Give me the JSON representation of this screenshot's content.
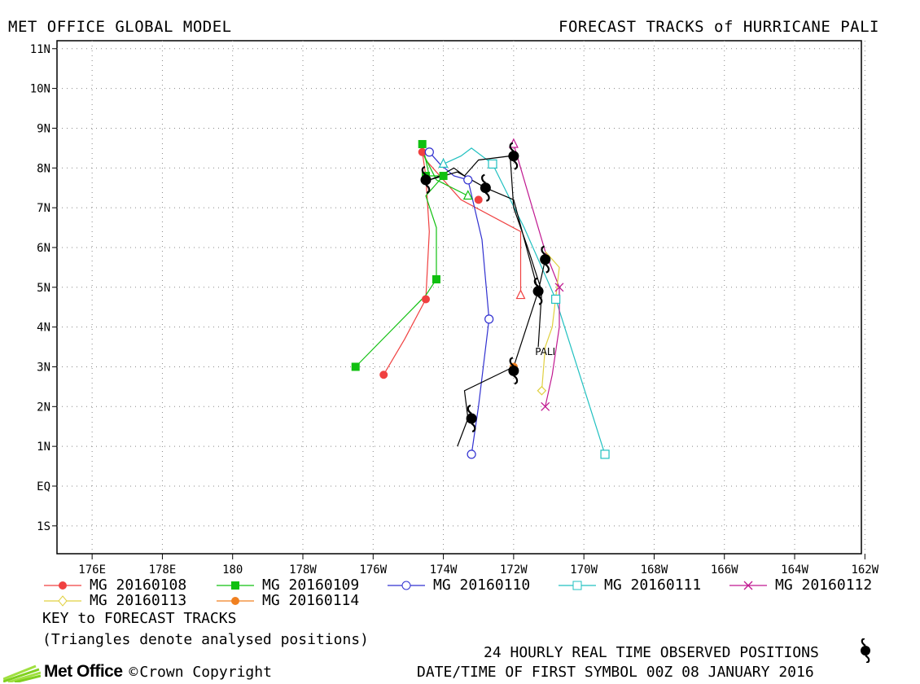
{
  "header": {
    "left": "MET OFFICE GLOBAL MODEL",
    "right": "FORECAST TRACKS of HURRICANE PALI"
  },
  "legend": {
    "entries": [
      {
        "label": "MG 20160108",
        "color": "#f04040",
        "marker": "filled-circle"
      },
      {
        "label": "MG 20160109",
        "color": "#10c010",
        "marker": "filled-square"
      },
      {
        "label": "MG 20160110",
        "color": "#3030d0",
        "marker": "open-circle"
      },
      {
        "label": "MG 20160111",
        "color": "#20c0c0",
        "marker": "open-square"
      },
      {
        "label": "MG 20160112",
        "color": "#c01890",
        "marker": "x"
      },
      {
        "label": "MG 20160113",
        "color": "#e0d040",
        "marker": "open-diamond"
      },
      {
        "label": "MG 20160114",
        "color": "#f08020",
        "marker": "filled-circle"
      }
    ]
  },
  "notes": {
    "key": "KEY to FORECAST TRACKS",
    "triangles": "(Triangles denote analysed positions)",
    "observed": "24 HOURLY REAL TIME OBSERVED POSITIONS",
    "datetime": "DATE/TIME OF FIRST SYMBOL 00Z 08 JANUARY 2016"
  },
  "logo": {
    "name": "Met Office",
    "copyright": "Crown Copyright",
    "copyright_symbol": "©"
  },
  "chart_data": {
    "type": "line",
    "title": "FORECAST TRACKS of HURRICANE PALI",
    "x_ticks": [
      "176E",
      "178E",
      "180",
      "178W",
      "176W",
      "174W",
      "172W",
      "170W",
      "168W",
      "166W",
      "164W",
      "162W"
    ],
    "y_ticks": [
      "11N",
      "10N",
      "9N",
      "8N",
      "7N",
      "6N",
      "5N",
      "4N",
      "3N",
      "2N",
      "1N",
      "EQ",
      "1S"
    ],
    "xlim": [
      175.0,
      197.9
    ],
    "ylim": [
      -1.7,
      11.2
    ],
    "grid": true,
    "storm_label": {
      "text": "PALI",
      "lon": 188.9,
      "lat": 3.4
    },
    "series": [
      {
        "name": "MG 20160108",
        "color": "#f04040",
        "marker": "filled-circle",
        "track": [
          [
            188.2,
            4.8
          ],
          [
            188.2,
            6.4
          ],
          [
            186.5,
            7.2
          ],
          [
            185.5,
            8.2
          ],
          [
            185.4,
            8.4
          ],
          [
            185.5,
            7.8
          ],
          [
            185.6,
            6.4
          ],
          [
            185.5,
            4.7
          ],
          [
            184.9,
            3.7
          ],
          [
            184.3,
            2.8
          ]
        ],
        "markers": [
          [
            187.0,
            7.2
          ],
          [
            185.4,
            8.4
          ],
          [
            185.5,
            4.7
          ],
          [
            184.3,
            2.8
          ]
        ],
        "analysed": [
          [
            188.2,
            4.8
          ]
        ]
      },
      {
        "name": "MG 20160109",
        "color": "#10c010",
        "marker": "filled-square",
        "track": [
          [
            186.7,
            7.3
          ],
          [
            185.8,
            7.7
          ],
          [
            185.4,
            8.4
          ],
          [
            185.4,
            8.6
          ],
          [
            185.6,
            7.8
          ],
          [
            186.0,
            7.8
          ],
          [
            185.5,
            7.3
          ],
          [
            185.8,
            6.5
          ],
          [
            185.8,
            5.2
          ],
          [
            185.5,
            4.8
          ],
          [
            184.5,
            3.9
          ],
          [
            183.5,
            3.0
          ]
        ],
        "markers": [
          [
            185.4,
            8.6
          ],
          [
            185.5,
            7.8
          ],
          [
            186.0,
            7.8
          ],
          [
            185.8,
            5.2
          ],
          [
            183.5,
            3.0
          ]
        ],
        "analysed": [
          [
            186.7,
            7.3
          ]
        ]
      },
      {
        "name": "MG 20160110",
        "color": "#3030d0",
        "marker": "open-circle",
        "track": [
          [
            185.6,
            8.4
          ],
          [
            185.9,
            8.1
          ],
          [
            186.3,
            7.8
          ],
          [
            186.7,
            7.7
          ],
          [
            187.1,
            6.2
          ],
          [
            187.3,
            4.2
          ],
          [
            187.0,
            2.0
          ],
          [
            186.8,
            0.8
          ]
        ],
        "markers": [
          [
            185.6,
            8.4
          ],
          [
            186.7,
            7.7
          ],
          [
            187.3,
            4.2
          ],
          [
            186.8,
            0.8
          ]
        ],
        "analysed": []
      },
      {
        "name": "MG 20160111",
        "color": "#20c0c0",
        "marker": "open-square",
        "track": [
          [
            186.0,
            8.1
          ],
          [
            186.5,
            8.3
          ],
          [
            186.8,
            8.5
          ],
          [
            187.4,
            8.1
          ],
          [
            188.3,
            6.5
          ],
          [
            189.2,
            4.7
          ],
          [
            190.6,
            0.8
          ]
        ],
        "markers": [
          [
            187.4,
            8.1
          ],
          [
            189.2,
            4.7
          ],
          [
            190.6,
            0.8
          ]
        ],
        "analysed": [
          [
            186.0,
            8.1
          ]
        ]
      },
      {
        "name": "MG 20160112",
        "color": "#c01890",
        "marker": "x",
        "track": [
          [
            188.0,
            8.6
          ],
          [
            188.5,
            7.1
          ],
          [
            188.9,
            5.9
          ],
          [
            189.3,
            5.0
          ],
          [
            189.3,
            4.0
          ],
          [
            189.1,
            2.8
          ],
          [
            188.9,
            2.0
          ]
        ],
        "markers": [
          [
            189.3,
            5.0
          ],
          [
            188.9,
            2.0
          ]
        ],
        "analysed": [
          [
            188.0,
            8.6
          ]
        ]
      },
      {
        "name": "MG 20160113",
        "color": "#e0d040",
        "marker": "open-diamond",
        "track": [
          [
            188.9,
            5.9
          ],
          [
            189.3,
            5.5
          ],
          [
            189.1,
            4.0
          ],
          [
            188.9,
            3.5
          ],
          [
            188.8,
            2.4
          ]
        ],
        "markers": [
          [
            188.8,
            2.4
          ]
        ],
        "analysed": []
      },
      {
        "name": "MG 20160114",
        "color": "#f08020",
        "marker": "filled-circle",
        "track": [
          [
            188.0,
            3.0
          ]
        ],
        "markers": [
          [
            188.0,
            3.0
          ]
        ],
        "analysed": []
      }
    ],
    "observed_track": {
      "color": "#000000",
      "track": [
        [
          188.7,
          3.5
        ],
        [
          188.8,
          4.9
        ],
        [
          188.4,
          6.0
        ],
        [
          188.0,
          7.0
        ],
        [
          187.9,
          8.3
        ],
        [
          187.0,
          8.2
        ],
        [
          186.6,
          7.8
        ],
        [
          186.3,
          8.0
        ],
        [
          185.9,
          7.8
        ],
        [
          185.6,
          7.7
        ],
        [
          186.4,
          7.9
        ],
        [
          187.2,
          7.5
        ],
        [
          188.0,
          7.2
        ],
        [
          188.7,
          4.9
        ],
        [
          188.9,
          5.7
        ],
        [
          188.7,
          4.9
        ],
        [
          188.0,
          3.0
        ],
        [
          186.6,
          2.4
        ],
        [
          186.7,
          1.7
        ],
        [
          186.4,
          1.0
        ]
      ],
      "positions": [
        [
          185.5,
          7.7
        ],
        [
          187.2,
          7.5
        ],
        [
          188.0,
          8.3
        ],
        [
          188.9,
          5.7
        ],
        [
          188.7,
          4.9
        ],
        [
          188.0,
          2.9
        ],
        [
          186.8,
          1.7
        ]
      ]
    }
  }
}
